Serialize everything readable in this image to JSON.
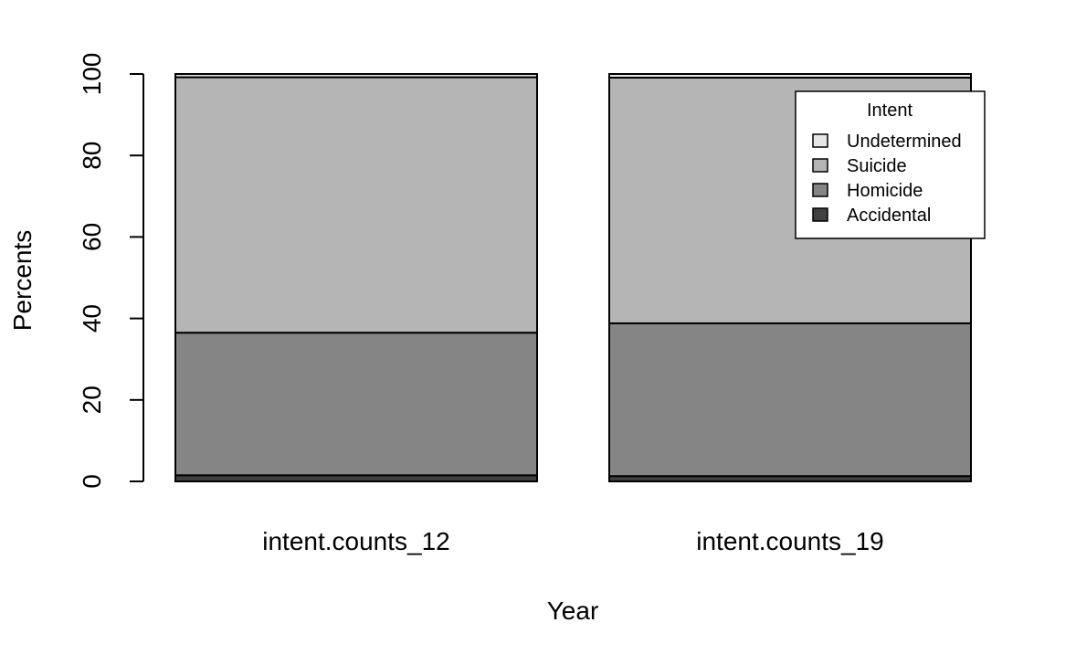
{
  "chart_data": {
    "type": "bar",
    "stacked": true,
    "categories": [
      "intent.counts_12",
      "intent.counts_19"
    ],
    "series": [
      {
        "name": "Accidental",
        "values": [
          1.5,
          1.3
        ],
        "color": "#404040"
      },
      {
        "name": "Homicide",
        "values": [
          35.0,
          37.5
        ],
        "color": "#858585"
      },
      {
        "name": "Suicide",
        "values": [
          62.7,
          60.3
        ],
        "color": "#b5b5b5"
      },
      {
        "name": "Undetermined",
        "values": [
          0.8,
          0.9
        ],
        "color": "#e6e6e6"
      }
    ],
    "xlabel": "Year",
    "ylabel": "Percents",
    "ylim": [
      0,
      100
    ],
    "yticks": [
      0,
      20,
      40,
      60,
      80,
      100
    ],
    "grid": false,
    "legend": {
      "title": "Intent",
      "placement": "top-right",
      "entries": [
        "Undetermined",
        "Suicide",
        "Homicide",
        "Accidental"
      ]
    }
  }
}
